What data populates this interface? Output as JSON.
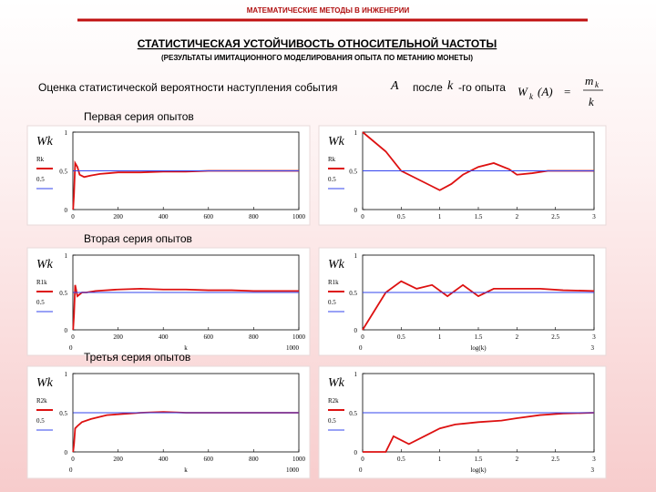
{
  "header": {
    "title": "МАТЕМАТИЧЕСКИЕ МЕТОДЫ В ИНЖЕНЕРИИ",
    "heading": "СТАТИСТИЧЕСКАЯ УСТОЙЧИВОСТЬ ОТНОСИТЕЛЬНОЙ ЧАСТОТЫ",
    "subheading": "(РЕЗУЛЬТАТЫ ИМИТАЦИОННОГО МОДЕЛИРОВАНИЯ ОПЫТА ПО МЕТАНИЮ МОНЕТЫ)",
    "intro": "Оценка статистической вероятности наступления события",
    "event": "A",
    "after": "после",
    "k": "k",
    "suffix": "-го опыта",
    "formula": {
      "lhs": "W",
      "lhs_sub": "k",
      "arg": "(A)",
      "eq": "=",
      "num": "m",
      "num_sub": "k",
      "den": "k"
    }
  },
  "chart_data": [
    {
      "type": "line",
      "title": "Первая серия опытов",
      "ylabel": "Wk",
      "x": [
        1,
        5,
        10,
        20,
        30,
        50,
        80,
        120,
        160,
        200,
        300,
        400,
        500,
        600,
        700,
        800,
        900,
        1000
      ],
      "series": [
        {
          "name": "Rk",
          "color": "#dd1111",
          "values": [
            0,
            0.2,
            0.6,
            0.55,
            0.45,
            0.42,
            0.44,
            0.46,
            0.47,
            0.48,
            0.48,
            0.49,
            0.49,
            0.5,
            0.5,
            0.5,
            0.5,
            0.5
          ]
        },
        {
          "name": "0.5",
          "color": "#3344ee",
          "values": [
            0.5,
            0.5,
            0.5,
            0.5,
            0.5,
            0.5,
            0.5,
            0.5,
            0.5,
            0.5,
            0.5,
            0.5,
            0.5,
            0.5,
            0.5,
            0.5,
            0.5,
            0.5
          ]
        }
      ],
      "xlim": [
        0,
        1000
      ],
      "xticks": [
        0,
        200,
        400,
        600,
        800,
        1000
      ],
      "ylim": [
        0,
        1
      ],
      "yticks": [
        0,
        0.5,
        1
      ]
    },
    {
      "type": "line",
      "ylabel": "Wk",
      "x": [
        0,
        0.3,
        0.5,
        0.7,
        0.9,
        1.0,
        1.15,
        1.3,
        1.5,
        1.7,
        1.9,
        2.0,
        2.2,
        2.4,
        2.6,
        2.8,
        3.0
      ],
      "series": [
        {
          "name": "Rk",
          "color": "#dd1111",
          "values": [
            1,
            0.75,
            0.5,
            0.4,
            0.3,
            0.25,
            0.33,
            0.45,
            0.55,
            0.6,
            0.52,
            0.45,
            0.47,
            0.5,
            0.5,
            0.5,
            0.5
          ]
        },
        {
          "name": "0.5",
          "color": "#3344ee",
          "values": [
            0.5,
            0.5,
            0.5,
            0.5,
            0.5,
            0.5,
            0.5,
            0.5,
            0.5,
            0.5,
            0.5,
            0.5,
            0.5,
            0.5,
            0.5,
            0.5,
            0.5
          ]
        }
      ],
      "xlim": [
        0,
        3
      ],
      "xticks": [
        0,
        0.5,
        1,
        1.5,
        2,
        2.5,
        3
      ],
      "ylim": [
        0,
        1
      ],
      "yticks": [
        0,
        0.5,
        1
      ]
    },
    {
      "type": "line",
      "title": "Вторая серия опытов",
      "ylabel": "Wk",
      "xlabel": "k",
      "x_end_labels": [
        "0",
        "1000"
      ],
      "x": [
        1,
        5,
        10,
        20,
        40,
        60,
        100,
        200,
        300,
        400,
        500,
        600,
        700,
        800,
        900,
        1000
      ],
      "series": [
        {
          "name": "R1k",
          "color": "#dd1111",
          "values": [
            0,
            0.2,
            0.6,
            0.45,
            0.5,
            0.5,
            0.52,
            0.54,
            0.55,
            0.54,
            0.54,
            0.53,
            0.53,
            0.52,
            0.52,
            0.52
          ]
        },
        {
          "name": "0.5",
          "color": "#3344ee",
          "values": [
            0.5,
            0.5,
            0.5,
            0.5,
            0.5,
            0.5,
            0.5,
            0.5,
            0.5,
            0.5,
            0.5,
            0.5,
            0.5,
            0.5,
            0.5,
            0.5
          ]
        }
      ],
      "xlim": [
        0,
        1000
      ],
      "xticks": [
        0,
        200,
        400,
        600,
        800,
        1000
      ],
      "ylim": [
        0,
        1
      ],
      "yticks": [
        0,
        0.5,
        1
      ]
    },
    {
      "type": "line",
      "ylabel": "Wk",
      "xlabel": "log(k)",
      "x_end_labels": [
        "0",
        "3"
      ],
      "x": [
        0,
        0.3,
        0.5,
        0.7,
        0.9,
        1.1,
        1.3,
        1.5,
        1.7,
        2.0,
        2.3,
        2.6,
        3.0
      ],
      "series": [
        {
          "name": "R1k",
          "color": "#dd1111",
          "values": [
            0,
            0.5,
            0.65,
            0.55,
            0.6,
            0.45,
            0.6,
            0.45,
            0.55,
            0.55,
            0.55,
            0.53,
            0.52
          ]
        },
        {
          "name": "0.5",
          "color": "#3344ee",
          "values": [
            0.5,
            0.5,
            0.5,
            0.5,
            0.5,
            0.5,
            0.5,
            0.5,
            0.5,
            0.5,
            0.5,
            0.5,
            0.5
          ]
        }
      ],
      "xlim": [
        0,
        3
      ],
      "xticks": [
        0,
        0.5,
        1,
        1.5,
        2,
        2.5,
        3
      ],
      "ylim": [
        0,
        1
      ],
      "yticks": [
        0,
        0.5,
        1
      ]
    },
    {
      "type": "line",
      "title": "Третья серия опытов",
      "ylabel": "Wk",
      "xlabel": "k",
      "x_end_labels": [
        "0",
        "1000"
      ],
      "x": [
        1,
        5,
        10,
        20,
        40,
        80,
        150,
        200,
        300,
        400,
        500,
        600,
        700,
        800,
        900,
        1000
      ],
      "series": [
        {
          "name": "R2k",
          "color": "#dd1111",
          "values": [
            0,
            0.1,
            0.3,
            0.33,
            0.38,
            0.42,
            0.47,
            0.48,
            0.5,
            0.51,
            0.5,
            0.5,
            0.5,
            0.5,
            0.5,
            0.5
          ]
        },
        {
          "name": "0.5",
          "color": "#3344ee",
          "values": [
            0.5,
            0.5,
            0.5,
            0.5,
            0.5,
            0.5,
            0.5,
            0.5,
            0.5,
            0.5,
            0.5,
            0.5,
            0.5,
            0.5,
            0.5,
            0.5
          ]
        }
      ],
      "xlim": [
        0,
        1000
      ],
      "xticks": [
        0,
        200,
        400,
        600,
        800,
        1000
      ],
      "ylim": [
        0,
        1
      ],
      "yticks": [
        0,
        0.5,
        1
      ]
    },
    {
      "type": "line",
      "ylabel": "Wk",
      "xlabel": "log(k)",
      "x_end_labels": [
        "0",
        "3"
      ],
      "x": [
        0,
        0.3,
        0.4,
        0.6,
        0.8,
        1.0,
        1.2,
        1.5,
        1.8,
        2.0,
        2.3,
        2.6,
        3.0
      ],
      "series": [
        {
          "name": "R2k",
          "color": "#dd1111",
          "values": [
            0,
            0,
            0.2,
            0.1,
            0.2,
            0.3,
            0.35,
            0.38,
            0.4,
            0.43,
            0.47,
            0.49,
            0.5
          ]
        },
        {
          "name": "0.5",
          "color": "#3344ee",
          "values": [
            0.5,
            0.5,
            0.5,
            0.5,
            0.5,
            0.5,
            0.5,
            0.5,
            0.5,
            0.5,
            0.5,
            0.5,
            0.5
          ]
        }
      ],
      "xlim": [
        0,
        3
      ],
      "xticks": [
        0,
        0.5,
        1,
        1.5,
        2,
        2.5,
        3
      ],
      "ylim": [
        0,
        1
      ],
      "yticks": [
        0,
        0.5,
        1
      ]
    }
  ]
}
